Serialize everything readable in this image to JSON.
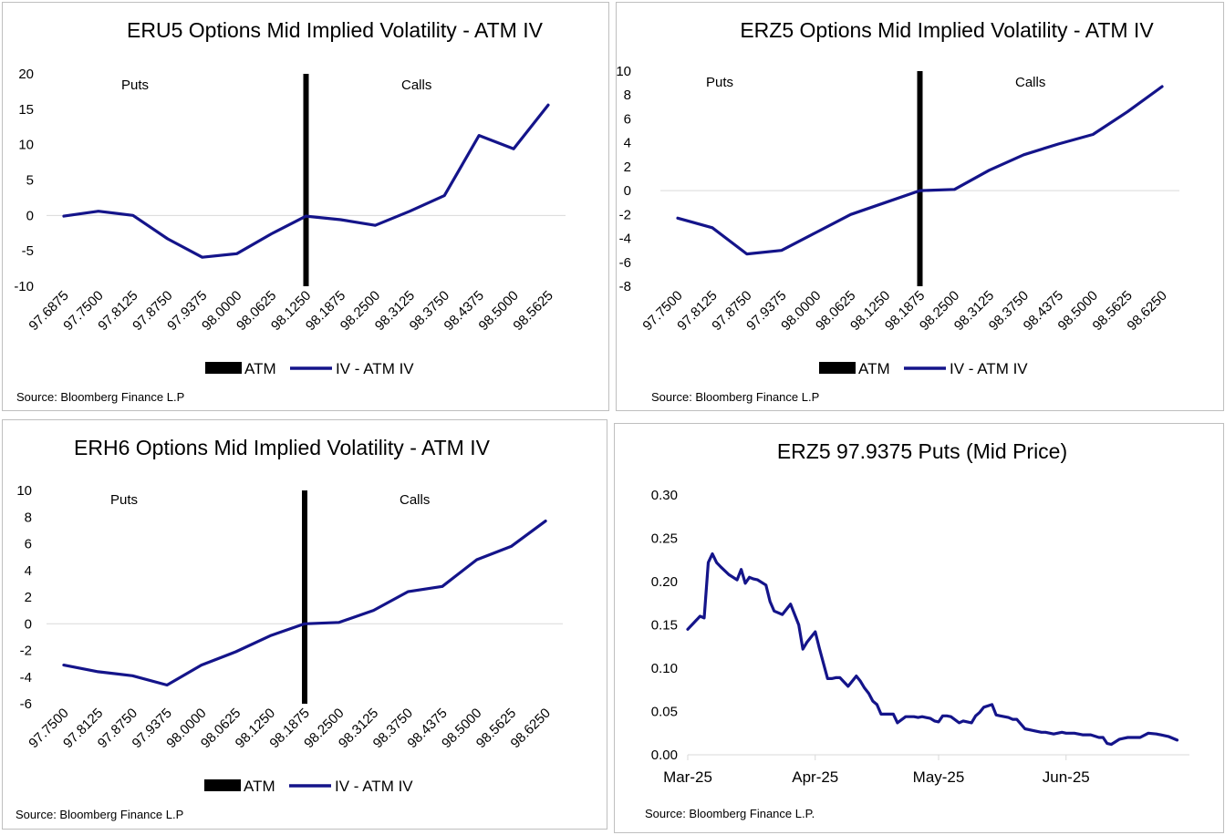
{
  "colors": {
    "series": "#14148a",
    "atm": "#000000",
    "grid": "#d9d9d9"
  },
  "chart_data": [
    {
      "type": "line",
      "title": "ERU5 Options Mid Implied Volatility - ATM IV",
      "categories": [
        "97.6875",
        "97.7500",
        "97.8125",
        "97.8750",
        "97.9375",
        "98.0000",
        "98.0625",
        "98.1250",
        "98.1875",
        "98.2500",
        "98.3125",
        "98.3750",
        "98.4375",
        "98.5000",
        "98.5625"
      ],
      "series": [
        {
          "name": "IV - ATM IV",
          "values": [
            -0.1,
            0.6,
            0.0,
            -3.3,
            -5.9,
            -5.4,
            -2.6,
            -0.1,
            -0.6,
            -1.4,
            0.6,
            2.8,
            11.3,
            9.4,
            15.6
          ]
        }
      ],
      "atm_category": "98.1250",
      "atm_name": "ATM",
      "ylim": [
        -10,
        20
      ],
      "yticks": [
        20,
        15,
        10,
        5,
        0,
        -5,
        -10
      ],
      "annotations": {
        "left": "Puts",
        "right": "Calls"
      },
      "source": "Source: Bloomberg Finance L.P",
      "legend": "bottom"
    },
    {
      "type": "line",
      "title": "ERZ5 Options Mid Implied Volatility - ATM IV",
      "categories": [
        "97.7500",
        "97.8125",
        "97.8750",
        "97.9375",
        "98.0000",
        "98.0625",
        "98.1250",
        "98.1875",
        "98.2500",
        "98.3125",
        "98.3750",
        "98.4375",
        "98.5000",
        "98.5625",
        "98.6250"
      ],
      "series": [
        {
          "name": "IV - ATM IV",
          "values": [
            -2.3,
            -3.1,
            -5.3,
            -5.0,
            -3.5,
            -2.0,
            -1.0,
            0.0,
            0.1,
            1.7,
            3.0,
            3.9,
            4.7,
            6.6,
            8.7
          ]
        }
      ],
      "atm_category": "98.1875",
      "atm_name": "ATM",
      "ylim": [
        -8,
        10
      ],
      "yticks": [
        10,
        8,
        6,
        4,
        2,
        0,
        -2,
        -4,
        -6,
        -8
      ],
      "annotations": {
        "left": "Puts",
        "right": "Calls"
      },
      "source": "Source: Bloomberg Finance L.P",
      "legend": "bottom"
    },
    {
      "type": "line",
      "title": "ERH6 Options Mid Implied Volatility - ATM IV",
      "categories": [
        "97.7500",
        "97.8125",
        "97.8750",
        "97.9375",
        "98.0000",
        "98.0625",
        "98.1250",
        "98.1875",
        "98.2500",
        "98.3125",
        "98.3750",
        "98.4375",
        "98.5000",
        "98.5625",
        "98.6250"
      ],
      "series": [
        {
          "name": "IV - ATM IV",
          "values": [
            -3.1,
            -3.6,
            -3.9,
            -4.6,
            -3.1,
            -2.1,
            -0.9,
            0.0,
            0.1,
            1.0,
            2.4,
            2.8,
            4.8,
            5.8,
            7.7
          ]
        }
      ],
      "atm_category": "98.1875",
      "atm_name": "ATM",
      "ylim": [
        -6,
        10
      ],
      "yticks": [
        10,
        8,
        6,
        4,
        2,
        0,
        -2,
        -4,
        -6
      ],
      "annotations": {
        "left": "Puts",
        "right": "Calls"
      },
      "source": "Source: Bloomberg Finance L.P",
      "legend": "bottom"
    },
    {
      "type": "line",
      "title": "ERZ5 97.9375  Puts (Mid Price)",
      "x_start": "2025-03-01",
      "x_end": "2025-07-01",
      "xticks": [
        {
          "date": "2025-03-01",
          "label": "Mar-25"
        },
        {
          "date": "2025-04-01",
          "label": "Apr-25"
        },
        {
          "date": "2025-05-01",
          "label": "May-25"
        },
        {
          "date": "2025-06-01",
          "label": "Jun-25"
        }
      ],
      "ylim": [
        0,
        0.3
      ],
      "yticks": [
        "0.30",
        "0.25",
        "0.20",
        "0.15",
        "0.10",
        "0.05",
        "0.00"
      ],
      "series": [
        {
          "x": [
            "2025-03-01",
            "2025-03-04",
            "2025-03-05",
            "2025-03-06",
            "2025-03-07",
            "2025-03-08",
            "2025-03-09",
            "2025-03-11",
            "2025-03-13",
            "2025-03-14",
            "2025-03-15",
            "2025-03-16",
            "2025-03-17",
            "2025-03-18",
            "2025-03-20",
            "2025-03-21",
            "2025-03-22",
            "2025-03-24",
            "2025-03-26",
            "2025-03-28",
            "2025-03-29",
            "2025-03-30",
            "2025-04-01",
            "2025-04-02",
            "2025-04-04",
            "2025-04-05",
            "2025-04-06",
            "2025-04-07",
            "2025-04-09",
            "2025-04-11",
            "2025-04-12",
            "2025-04-13",
            "2025-04-14",
            "2025-04-15",
            "2025-04-16",
            "2025-04-17",
            "2025-04-19",
            "2025-04-20",
            "2025-04-21",
            "2025-04-23",
            "2025-04-25",
            "2025-04-26",
            "2025-04-27",
            "2025-04-29",
            "2025-04-30",
            "2025-05-01",
            "2025-05-02",
            "2025-05-03",
            "2025-05-04",
            "2025-05-06",
            "2025-05-07",
            "2025-05-09",
            "2025-05-10",
            "2025-05-11",
            "2025-05-12",
            "2025-05-14",
            "2025-05-15",
            "2025-05-16",
            "2025-05-18",
            "2025-05-19",
            "2025-05-20",
            "2025-05-22",
            "2025-05-24",
            "2025-05-26",
            "2025-05-27",
            "2025-05-29",
            "2025-05-31",
            "2025-06-01",
            "2025-06-02",
            "2025-06-03",
            "2025-06-05",
            "2025-06-07",
            "2025-06-09",
            "2025-06-10",
            "2025-06-11",
            "2025-06-12",
            "2025-06-14",
            "2025-06-15",
            "2025-06-16",
            "2025-06-17",
            "2025-06-19",
            "2025-06-21",
            "2025-06-23",
            "2025-06-24",
            "2025-06-26",
            "2025-06-28"
          ],
          "values": [
            0.145,
            0.16,
            0.158,
            0.222,
            0.232,
            0.222,
            0.217,
            0.208,
            0.202,
            0.214,
            0.198,
            0.205,
            0.203,
            0.202,
            0.196,
            0.177,
            0.166,
            0.162,
            0.174,
            0.15,
            0.122,
            0.13,
            0.142,
            0.123,
            0.088,
            0.088,
            0.089,
            0.089,
            0.079,
            0.091,
            0.085,
            0.077,
            0.071,
            0.062,
            0.058,
            0.047,
            0.047,
            0.047,
            0.037,
            0.044,
            0.044,
            0.043,
            0.044,
            0.042,
            0.039,
            0.038,
            0.045,
            0.045,
            0.044,
            0.037,
            0.039,
            0.037,
            0.045,
            0.049,
            0.055,
            0.058,
            0.046,
            0.045,
            0.043,
            0.041,
            0.041,
            0.03,
            0.028,
            0.026,
            0.026,
            0.024,
            0.026,
            0.025,
            0.025,
            0.025,
            0.023,
            0.023,
            0.02,
            0.02,
            0.013,
            0.012,
            0.018,
            0.019,
            0.02,
            0.02,
            0.02,
            0.025,
            0.024,
            0.023,
            0.021,
            0.017
          ]
        }
      ],
      "source": "Source: Bloomberg Finance L.P."
    }
  ]
}
